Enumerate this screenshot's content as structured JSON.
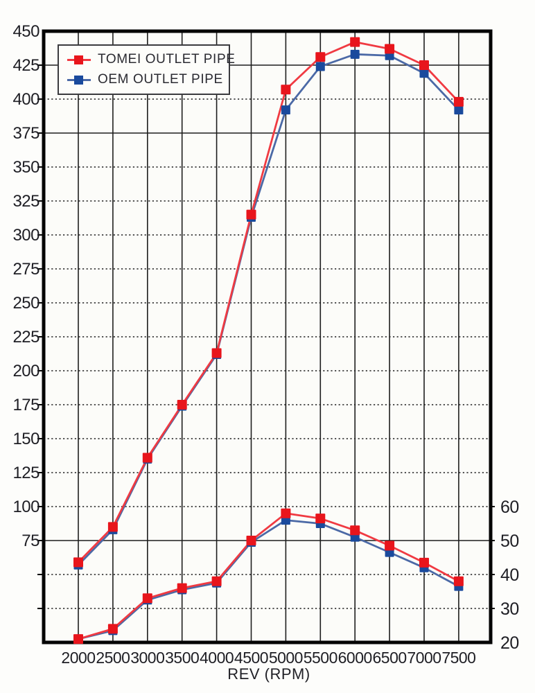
{
  "chart_data": {
    "type": "line",
    "title": "",
    "xlabel": "REV (RPM)",
    "x": [
      2000,
      2500,
      3000,
      3500,
      4000,
      4500,
      5000,
      5500,
      6000,
      6500,
      7000,
      7500
    ],
    "x_tick_labels": [
      "2000",
      "2500",
      "3000",
      "3500",
      "4000",
      "4500",
      "5000",
      "5500",
      "6000",
      "6500",
      "7000",
      "7500"
    ],
    "left_axis": {
      "labeled_ticks": [
        450,
        425,
        400,
        375,
        350,
        325,
        300,
        275,
        250,
        225,
        200,
        175,
        150,
        125,
        100,
        75
      ],
      "unlabeled_ticks": [
        50,
        25
      ],
      "range": [
        0,
        450
      ],
      "grid_step": 25
    },
    "right_axis": {
      "labeled_ticks": [
        60,
        50,
        40,
        30,
        20
      ],
      "range_note": "right 20 aligns with left 0, right 60 aligns with left 100"
    },
    "series": [
      {
        "name": "TOMEI OUTLET PIPE",
        "axis": "left",
        "values": [
          59,
          85,
          136,
          175,
          213,
          315,
          407,
          431,
          442,
          437,
          425,
          398
        ]
      },
      {
        "name": "OEM OUTLET PIPE",
        "axis": "left",
        "values": [
          57,
          83,
          135,
          174,
          212,
          313,
          392,
          424,
          433,
          432,
          419,
          392
        ]
      },
      {
        "name": "TOMEI OUTLET PIPE",
        "axis": "right",
        "values": [
          21,
          24,
          33,
          36,
          38,
          50,
          58,
          56.5,
          53,
          48.5,
          43.5,
          38
        ]
      },
      {
        "name": "OEM OUTLET PIPE",
        "axis": "right",
        "values": [
          21,
          23.5,
          32.5,
          35.5,
          37.5,
          49.5,
          56,
          55,
          51,
          46.5,
          42,
          36.5
        ]
      }
    ],
    "legend": {
      "position": "top-left",
      "entries": [
        {
          "label": "TOMEI OUTLET PIPE",
          "color": "#e8151c"
        },
        {
          "label": "OEM OUTLET PIPE",
          "color": "#1a4a9d"
        }
      ]
    },
    "grid": "on"
  },
  "colors": {
    "tomei_marker": "#e8151c",
    "tomei_line": "#f03a42",
    "oem_marker": "#1a4a9d",
    "oem_line": "#4b69a6",
    "grid": "#1d1d1d",
    "border": "#050505",
    "plot_bg": "#fcfcf9",
    "text": "#1e1e24"
  }
}
